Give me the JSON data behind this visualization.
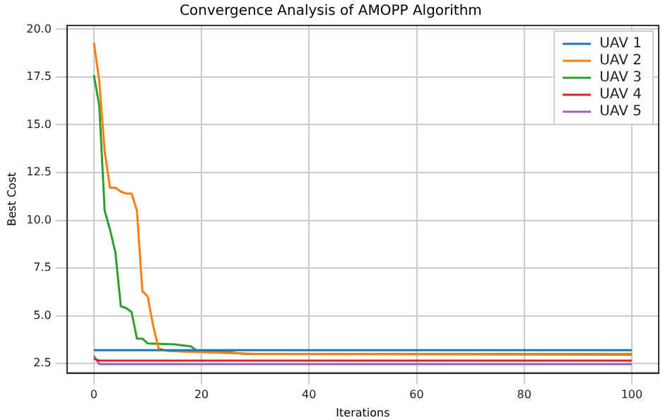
{
  "chart_data": {
    "type": "line",
    "title": "Convergence Analysis of AMOPP Algorithm",
    "xlabel": "Iterations",
    "ylabel": "Best Cost",
    "xlim": [
      -5,
      105
    ],
    "xticks": [
      0,
      20,
      40,
      60,
      80,
      100
    ],
    "ylim": [
      2.0,
      20.2
    ],
    "yticks": [
      {
        "value": 2.5,
        "label": "2.5"
      },
      {
        "value": 5,
        "label": "5.0"
      },
      {
        "value": 7.5,
        "label": "7.5"
      },
      {
        "value": 10,
        "label": "10.0"
      },
      {
        "value": 12.5,
        "label": "12.5"
      },
      {
        "value": 15,
        "label": "15.0"
      },
      {
        "value": 17.5,
        "label": "17.5"
      },
      {
        "value": 20,
        "label": "20.0"
      }
    ],
    "grid": true,
    "legend": "top right",
    "marker": "none",
    "line_style": "solid",
    "series": [
      {
        "name": "UAV 1",
        "color": "#1f77b4",
        "x": [
          0,
          100
        ],
        "values": [
          3.2,
          3.2
        ]
      },
      {
        "name": "UAV 2",
        "color": "#ff7f0e",
        "x": [
          0,
          1,
          2,
          3,
          4,
          5,
          6,
          7,
          8,
          9,
          10,
          11,
          12,
          13,
          14,
          20,
          30,
          100
        ],
        "values": [
          19.3,
          17.3,
          13.6,
          11.7,
          11.7,
          11.5,
          11.4,
          11.4,
          10.5,
          6.3,
          6.0,
          4.5,
          3.3,
          3.2,
          3.15,
          3.1,
          3.0,
          3.0
        ]
      },
      {
        "name": "UAV 3",
        "color": "#2ca02c",
        "x": [
          0,
          1,
          2,
          3,
          4,
          5,
          6,
          7,
          8,
          9,
          10,
          15,
          18,
          19,
          25,
          28,
          100
        ],
        "values": [
          17.6,
          16.0,
          10.5,
          9.5,
          8.3,
          5.5,
          5.4,
          5.2,
          3.8,
          3.8,
          3.55,
          3.5,
          3.4,
          3.2,
          3.1,
          3.0,
          2.97
        ]
      },
      {
        "name": "UAV 4",
        "color": "#d62728",
        "x": [
          0,
          1,
          100
        ],
        "values": [
          2.75,
          2.65,
          2.65
        ]
      },
      {
        "name": "UAV 5",
        "color": "#9467bd",
        "x": [
          0,
          1,
          100
        ],
        "values": [
          2.9,
          2.47,
          2.47
        ]
      }
    ]
  }
}
